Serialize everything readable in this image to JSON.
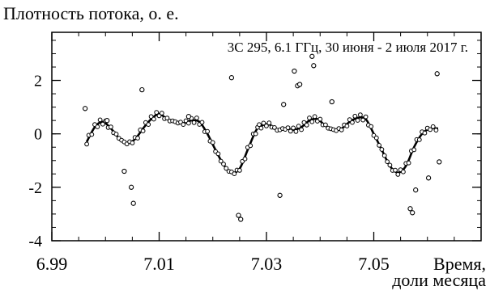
{
  "chart_data": {
    "type": "scatter",
    "title": "",
    "ylabel": "Плотность потока, о. е.",
    "xlabel_line1": "Время,",
    "xlabel_line2": "доли месяца",
    "annotation": "3С 295, 6.1 ГГц, 30 июня - 2 июля 2017 г.",
    "xlim": [
      6.99,
      7.07
    ],
    "ylim": [
      -4,
      3.8
    ],
    "x_ticks": [
      {
        "value": 6.99,
        "label": "6.99"
      },
      {
        "value": 7.01,
        "label": "7.01"
      },
      {
        "value": 7.03,
        "label": "7.03"
      },
      {
        "value": 7.05,
        "label": "7.05"
      }
    ],
    "y_ticks": [
      {
        "value": 2,
        "label": "2"
      },
      {
        "value": 0,
        "label": "0"
      },
      {
        "value": -2,
        "label": "-2"
      },
      {
        "value": -4,
        "label": "-4"
      }
    ],
    "x_minor_step": 0.005,
    "y_minor_step": 0.5,
    "grid": false,
    "series": [
      {
        "kind": "line",
        "x": [
          6.9965,
          6.998,
          6.9995,
          7.001,
          7.0025,
          7.004,
          7.0055,
          7.007,
          7.0085,
          7.01,
          7.0115,
          7.013,
          7.0145,
          7.016,
          7.0175,
          7.019,
          7.0205,
          7.022,
          7.0235,
          7.025,
          7.0265,
          7.028,
          7.029,
          7.0305,
          7.032,
          7.0335,
          7.035,
          7.0365,
          7.038,
          7.0395,
          7.041,
          7.0425,
          7.044,
          7.0455,
          7.047,
          7.0485,
          7.05,
          7.0515,
          7.053,
          7.0545,
          7.056,
          7.0575,
          7.059,
          7.0605,
          7.062
        ],
        "y": [
          -0.3,
          0.25,
          0.45,
          0.2,
          -0.15,
          -0.35,
          -0.2,
          0.2,
          0.55,
          0.75,
          0.55,
          0.45,
          0.4,
          0.5,
          0.45,
          0.0,
          -0.6,
          -1.15,
          -1.45,
          -1.3,
          -0.6,
          0.1,
          0.3,
          0.35,
          0.15,
          0.2,
          0.15,
          0.25,
          0.5,
          0.55,
          0.3,
          0.15,
          0.2,
          0.45,
          0.6,
          0.55,
          0.0,
          -0.6,
          -1.2,
          -1.45,
          -1.2,
          -0.5,
          0.0,
          0.2,
          0.2
        ]
      },
      {
        "kind": "scatter",
        "x": [
          6.9962,
          7.0003,
          7.0035,
          7.0048,
          7.0052,
          7.0068,
          7.0155,
          7.0235,
          7.0248,
          7.0252,
          7.0325,
          7.0332,
          7.0352,
          7.0358,
          7.0362,
          7.0385,
          7.0388,
          7.0422,
          7.0568,
          7.0572,
          7.0578,
          7.0602,
          7.0618,
          7.0622
        ],
        "y": [
          0.95,
          0.5,
          -1.4,
          -2.0,
          -2.6,
          1.65,
          0.65,
          2.1,
          -3.05,
          -3.2,
          -2.3,
          1.1,
          2.35,
          1.8,
          1.85,
          2.9,
          2.55,
          1.2,
          -2.8,
          -2.95,
          -2.1,
          -1.65,
          2.25,
          -1.05
        ]
      }
    ]
  }
}
